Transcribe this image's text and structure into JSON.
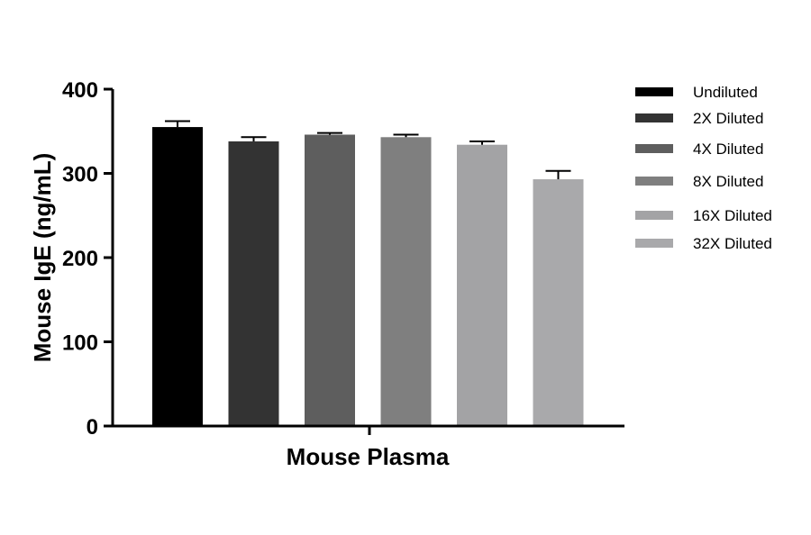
{
  "chart_data": {
    "type": "bar",
    "xlabel": "Mouse Plasma",
    "ylabel": "Mouse IgE (ng/mL)",
    "ylim": [
      0,
      400
    ],
    "yticks": [
      0,
      100,
      200,
      300,
      400
    ],
    "series": [
      {
        "name": "Undiluted",
        "value": 355,
        "error": 7,
        "color": "#000000"
      },
      {
        "name": "2X Diluted",
        "value": 338,
        "error": 5,
        "color": "#333333"
      },
      {
        "name": "4X Diluted",
        "value": 346,
        "error": 2,
        "color": "#5e5e5e"
      },
      {
        "name": "8X Diluted",
        "value": 343,
        "error": 3,
        "color": "#7f7f7f"
      },
      {
        "name": "16X Diluted",
        "value": 334,
        "error": 4,
        "color": "#a3a3a5"
      },
      {
        "name": "32X Diluted",
        "value": 293,
        "error": 10,
        "color": "#a9a9ab"
      }
    ],
    "legend": "right",
    "grid": false
  }
}
